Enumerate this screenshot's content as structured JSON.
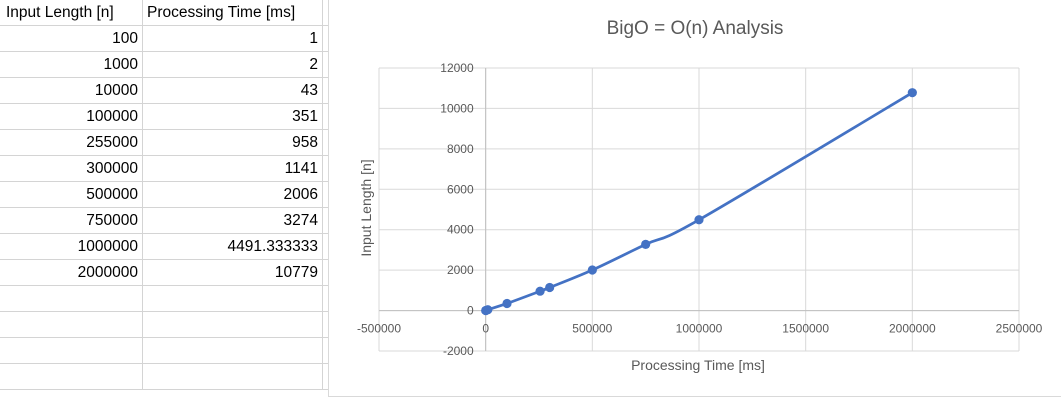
{
  "table": {
    "headers": [
      "Input Length [n]",
      "Processing Time [ms]"
    ],
    "rows": [
      [
        "100",
        "1"
      ],
      [
        "1000",
        "2"
      ],
      [
        "10000",
        "43"
      ],
      [
        "100000",
        "351"
      ],
      [
        "255000",
        "958"
      ],
      [
        "300000",
        "1141"
      ],
      [
        "500000",
        "2006"
      ],
      [
        "750000",
        "3274"
      ],
      [
        "1000000",
        "4491.333333"
      ],
      [
        "2000000",
        "10779"
      ]
    ]
  },
  "chart_data": {
    "type": "scatter",
    "title": "BigO = O(n) Analysis",
    "xlabel": "Processing Time [ms]",
    "ylabel": "Input Length [n]",
    "xlim": [
      -500000,
      2500000
    ],
    "ylim": [
      -2000,
      12000
    ],
    "x_ticks": [
      "-500000",
      "0",
      "500000",
      "1000000",
      "1500000",
      "2000000",
      "2500000"
    ],
    "y_ticks": [
      "12000",
      "10000",
      "8000",
      "6000",
      "4000",
      "2000",
      "0",
      "-2000"
    ],
    "grid": true,
    "smoothed": true,
    "series": [
      {
        "color": "#4472c4",
        "x": [
          100,
          1000,
          10000,
          100000,
          255000,
          300000,
          500000,
          750000,
          1000000,
          2000000
        ],
        "y": [
          1,
          2,
          43,
          351,
          958,
          1141,
          2006,
          3274,
          4491.333333,
          10779
        ]
      }
    ]
  }
}
